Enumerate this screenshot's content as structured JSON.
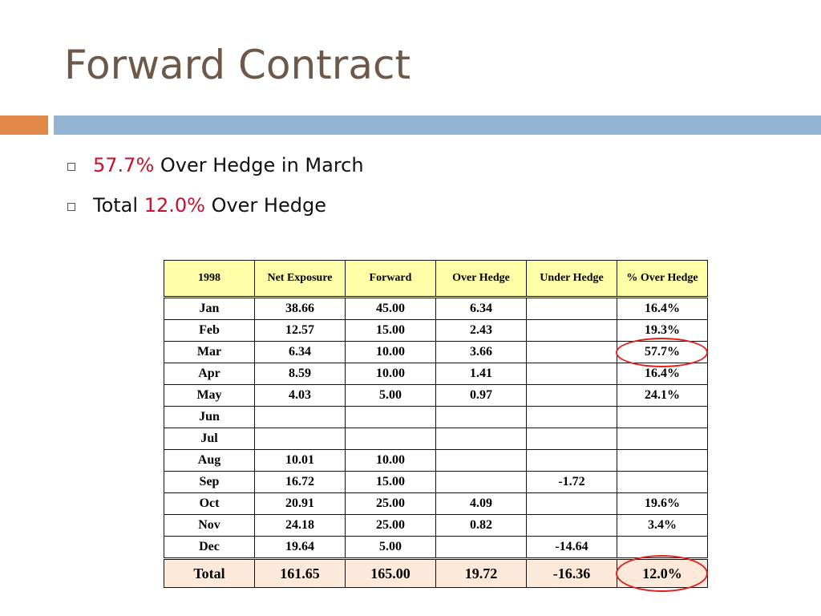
{
  "title": "Forward Contract",
  "bullets": [
    {
      "highlight": "57.7%",
      "text": " Over Hedge in March"
    },
    {
      "prefix": "Total ",
      "highlight": "12.0%",
      "text": " Over Hedge"
    }
  ],
  "table": {
    "headers": [
      "1998",
      "Net Exposure",
      "Forward",
      "Over Hedge",
      "Under Hedge",
      "% Over Hedge"
    ],
    "rows": [
      [
        "Jan",
        "38.66",
        "45.00",
        "6.34",
        "",
        "16.4%"
      ],
      [
        "Feb",
        "12.57",
        "15.00",
        "2.43",
        "",
        "19.3%"
      ],
      [
        "Mar",
        "6.34",
        "10.00",
        "3.66",
        "",
        "57.7%"
      ],
      [
        "Apr",
        "8.59",
        "10.00",
        "1.41",
        "",
        "16.4%"
      ],
      [
        "May",
        "4.03",
        "5.00",
        "0.97",
        "",
        "24.1%"
      ],
      [
        "Jun",
        "",
        "",
        "",
        "",
        ""
      ],
      [
        "Jul",
        "",
        "",
        "",
        "",
        ""
      ],
      [
        "Aug",
        "10.01",
        "10.00",
        "",
        "",
        ""
      ],
      [
        "Sep",
        "16.72",
        "15.00",
        "",
        "-1.72",
        ""
      ],
      [
        "Oct",
        "20.91",
        "25.00",
        "4.09",
        "",
        "19.6%"
      ],
      [
        "Nov",
        "24.18",
        "25.00",
        "0.82",
        "",
        "3.4%"
      ],
      [
        "Dec",
        "19.64",
        "5.00",
        "",
        "-14.64",
        ""
      ]
    ],
    "total": [
      "Total",
      "161.65",
      "165.00",
      "19.72",
      "-16.36",
      "12.0%"
    ]
  },
  "colors": {
    "title": "#6d5949",
    "accent_orange": "#e08848",
    "accent_blue": "#93b4d2",
    "highlight_red": "#c8102e",
    "circle": "#e02020"
  }
}
